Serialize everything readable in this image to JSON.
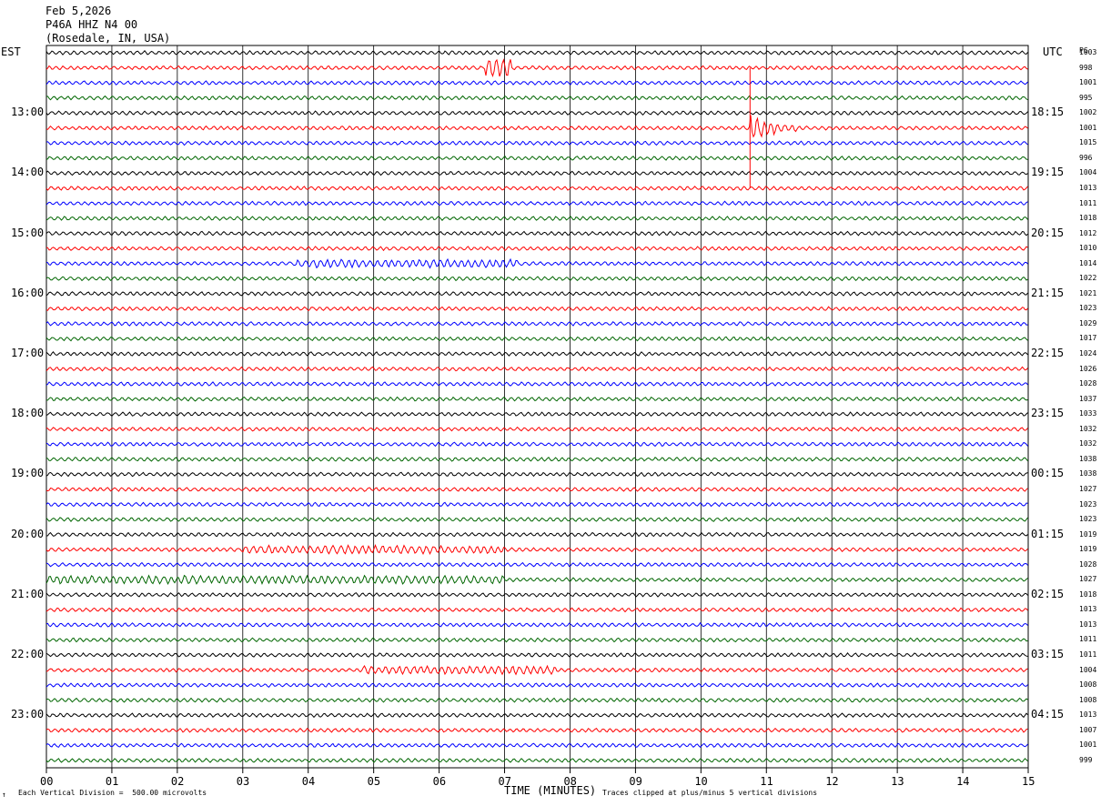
{
  "header": {
    "date": "Feb 5,2026",
    "station": "P46A HHZ N4 00",
    "location": "(Rosedale, IN, USA)"
  },
  "left_zone_label": "EST",
  "right_zone_label": "UTC",
  "pg_label": "PG",
  "footer": {
    "scale_note": "Each Vertical Division =  500.00 microvolts",
    "clip_note": "Traces clipped at plus/minus 5 vertical divisions",
    "mark": "↑"
  },
  "colors": {
    "trace_cycle": [
      "#000000",
      "#ff0000",
      "#0000ff",
      "#006600"
    ],
    "grid": "#000000"
  },
  "chart_data": {
    "type": "line",
    "xlabel": "TIME (MINUTES)",
    "x_ticks": [
      "00",
      "01",
      "02",
      "03",
      "04",
      "05",
      "06",
      "07",
      "08",
      "09",
      "10",
      "11",
      "12",
      "13",
      "14",
      "15"
    ],
    "xlim": [
      0,
      15
    ],
    "left_time_labels": [
      "13:00",
      "14:00",
      "15:00",
      "16:00",
      "17:00",
      "18:00",
      "19:00",
      "20:00",
      "21:00",
      "22:00",
      "23:00"
    ],
    "right_time_labels": [
      "18:15",
      "19:15",
      "20:15",
      "21:15",
      "22:15",
      "23:15",
      "00:15",
      "01:15",
      "02:15",
      "03:15",
      "04:15"
    ],
    "hour_label_row_start": 4,
    "rows_per_hour": 4,
    "trace_row_count": 48,
    "row_values": [
      "1003",
      "998",
      "1001",
      "995",
      "1002",
      "1001",
      "1015",
      "996",
      "1004",
      "1013",
      "1011",
      "1018",
      "1012",
      "1010",
      "1014",
      "1022",
      "1021",
      "1023",
      "1029",
      "1017",
      "1024",
      "1026",
      "1028",
      "1037",
      "1033",
      "1032",
      "1032",
      "1038",
      "1038",
      "1027",
      "1023",
      "1023",
      "1019",
      "1019",
      "1028",
      "1027",
      "1018",
      "1013",
      "1013",
      "1011",
      "1011",
      "1004",
      "1008",
      "1008",
      "1013",
      "1007",
      "1001",
      "999"
    ],
    "events": [
      {
        "row": 1,
        "start_min": 6.7,
        "end_min": 7.1,
        "amplitude": "high"
      },
      {
        "row": 5,
        "start_min": 10.75,
        "end_min": 12.6,
        "amplitude": "very-high"
      },
      {
        "row": 14,
        "start_min": 3.8,
        "end_min": 7.2,
        "amplitude": "medium"
      },
      {
        "row": 33,
        "start_min": 3.0,
        "end_min": 7.0,
        "amplitude": "medium"
      },
      {
        "row": 35,
        "start_min": 0.0,
        "end_min": 7.0,
        "amplitude": "medium"
      },
      {
        "row": 41,
        "start_min": 4.8,
        "end_min": 7.8,
        "amplitude": "medium"
      }
    ]
  }
}
